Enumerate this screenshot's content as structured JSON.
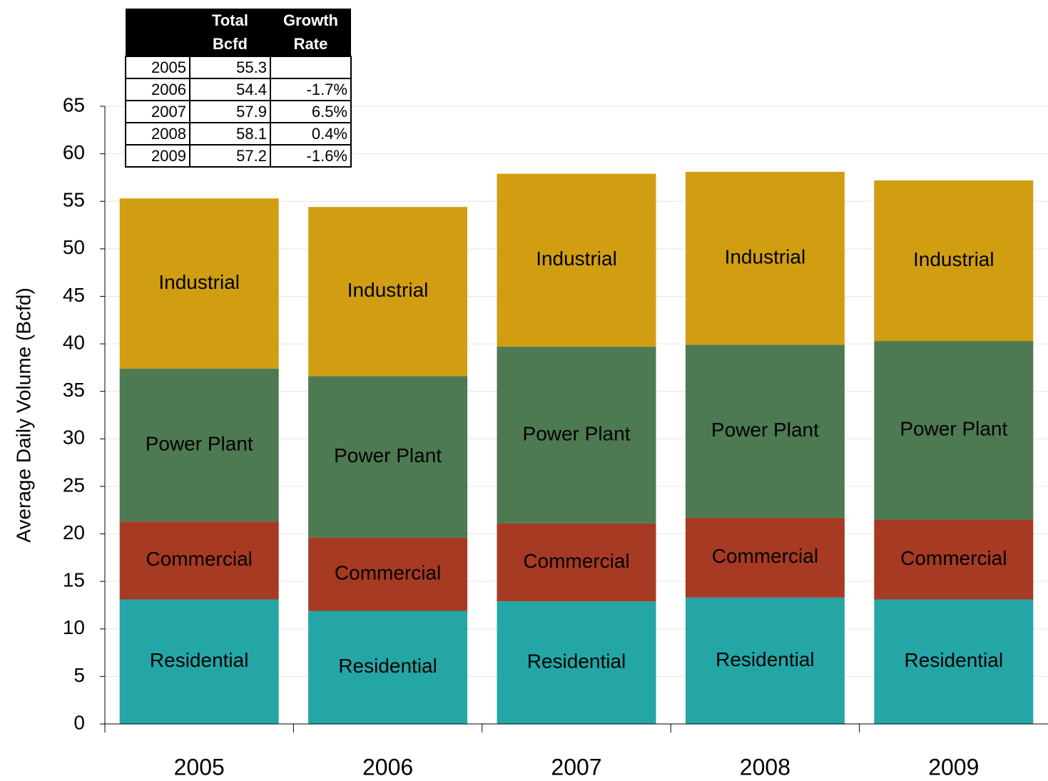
{
  "chart_data": {
    "type": "stacked_bar",
    "y_label": "Average Daily Volume (Bcfd)",
    "categories": [
      "2005",
      "2006",
      "2007",
      "2008",
      "2009"
    ],
    "series": [
      {
        "name": "Residential",
        "color": "#24a6a6",
        "values": [
          13.1,
          11.9,
          12.9,
          13.3,
          13.1
        ]
      },
      {
        "name": "Commercial",
        "color": "#a63a22",
        "values": [
          8.2,
          7.7,
          8.2,
          8.4,
          8.4
        ]
      },
      {
        "name": "Power Plant",
        "color": "#4d7a52",
        "values": [
          16.1,
          17.0,
          18.6,
          18.2,
          18.8
        ]
      },
      {
        "name": "Industrial",
        "color": "#d19e12",
        "values": [
          17.9,
          17.8,
          18.2,
          18.2,
          16.9
        ]
      }
    ],
    "ylim": [
      0,
      65
    ],
    "yticks": [
      0,
      5,
      10,
      15,
      20,
      25,
      30,
      35,
      40,
      45,
      50,
      55,
      60,
      65
    ],
    "grid": true
  },
  "table": {
    "columns": [
      "Total Bcfd",
      "Growth Rate"
    ],
    "rows": [
      {
        "year": "2005",
        "total": 55.3
      },
      {
        "year": "2006",
        "total": 54.4,
        "growth": "-1.7%"
      },
      {
        "year": "2007",
        "total": 57.9,
        "growth": "6.5%"
      },
      {
        "year": "2008",
        "total": 58.1,
        "growth": "0.4%"
      },
      {
        "year": "2009",
        "total": 57.2,
        "growth": "-1.6%"
      }
    ]
  }
}
